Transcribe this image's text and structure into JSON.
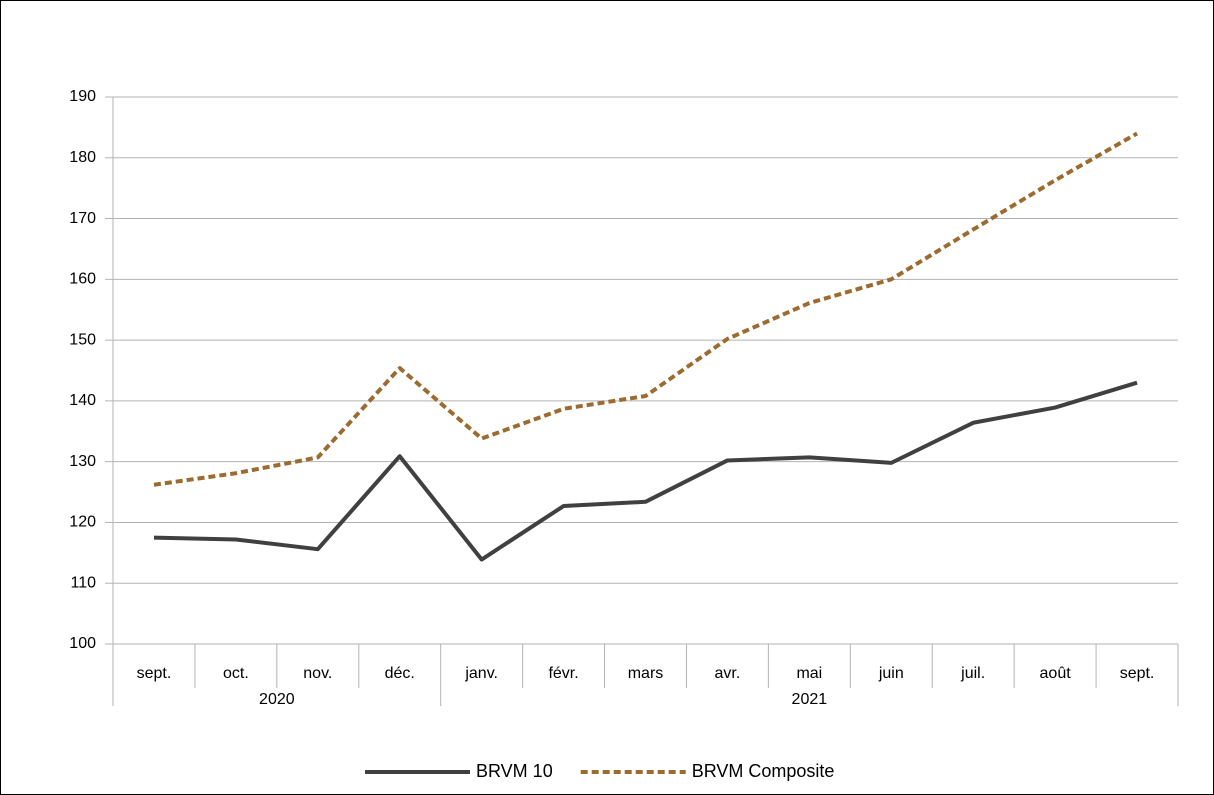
{
  "chart_data": {
    "type": "line",
    "categories": [
      "sept.",
      "oct.",
      "nov.",
      "déc.",
      "janv.",
      "févr.",
      "mars",
      "avr.",
      "mai",
      "juin",
      "juil.",
      "août",
      "sept."
    ],
    "groups": [
      {
        "label": "2020",
        "count": 4
      },
      {
        "label": "2021",
        "count": 9
      }
    ],
    "series": [
      {
        "name": "BRVM 10",
        "color": "#404040",
        "dashed": false,
        "values": [
          117.5,
          117.2,
          115.6,
          130.9,
          113.9,
          122.7,
          123.4,
          130.2,
          130.7,
          129.8,
          136.4,
          138.9,
          143.0
        ]
      },
      {
        "name": "BRVM Composite",
        "color": "#9c6b30",
        "dashed": true,
        "values": [
          126.2,
          128.1,
          130.7,
          145.4,
          133.8,
          138.7,
          140.8,
          150.2,
          156.1,
          160.0,
          168.2,
          176.3,
          184.0
        ]
      }
    ],
    "ylim": [
      100,
      190
    ],
    "yticks": [
      100,
      110,
      120,
      130,
      140,
      150,
      160,
      170,
      180,
      190
    ],
    "grid": true,
    "legend": "bottom"
  }
}
